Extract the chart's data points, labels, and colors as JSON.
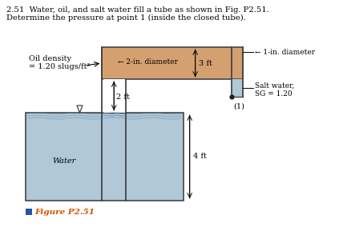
{
  "title_line1": "2.51  Water, oil, and salt water fill a tube as shown in Fig. P2.51.",
  "title_line2": "Determine the pressure at point 1 (inside the closed tube).",
  "fig_caption": "Figure P2.51",
  "oil_color": "#d4a070",
  "water_color": "#b0c8d8",
  "water_surface_color": "#7a9db0",
  "tube_line_color": "#444444",
  "oil_density_label": "Oil density",
  "oil_density_value": "= 1.20 slugs/ft³",
  "label_2in": "← 2-in. diameter",
  "label_1in": "← 1-in. diameter",
  "label_3ft": "3 ft",
  "label_2ft": "2 ft",
  "label_4ft": "4 ft",
  "label_saltwater": "Salt water,",
  "label_sg": "SG = 1.20",
  "label_point1": "(1)",
  "label_water": "Water",
  "cap_color": "#2255aa",
  "cap_text_color": "#cc5500"
}
